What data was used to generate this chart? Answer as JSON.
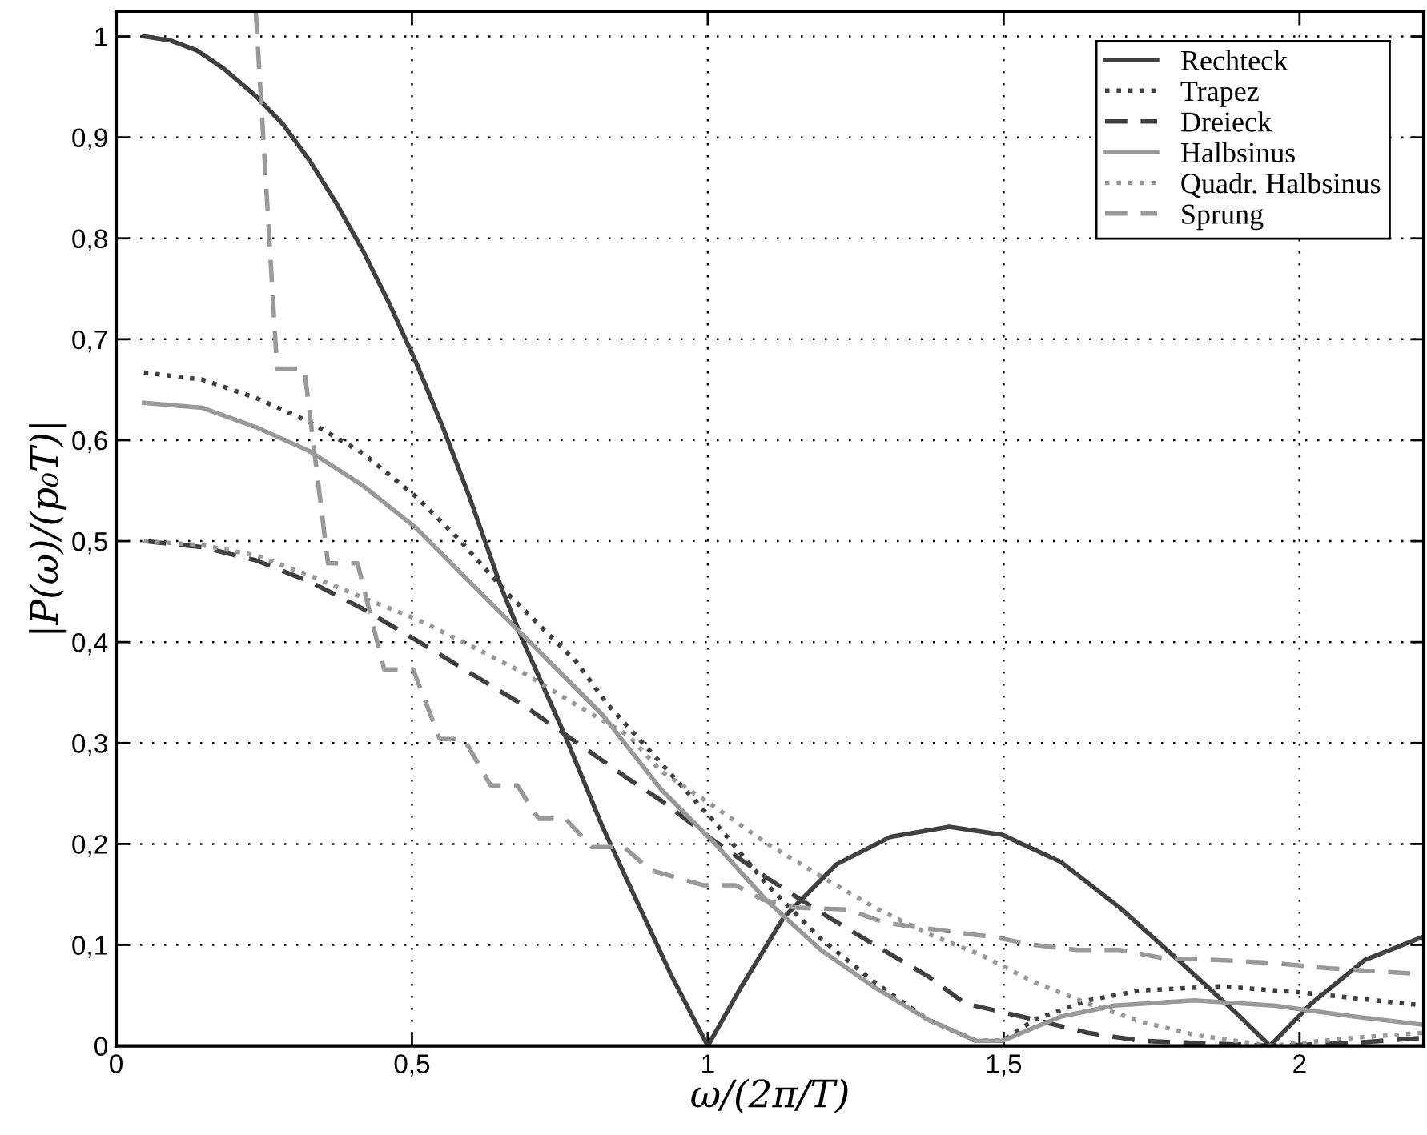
{
  "chart_data": {
    "type": "line",
    "xlabel": "ω/(2π/T)",
    "ylabel": "|P(ω)/(p₀T)|",
    "xlim": [
      0,
      2.21
    ],
    "ylim": [
      0,
      1.025
    ],
    "xticks": [
      0,
      {
        "value": 0.5,
        "label": "0,5"
      },
      1,
      {
        "value": 1.5,
        "label": "1,5"
      },
      2
    ],
    "yticks": [
      0,
      {
        "value": 0.1,
        "label": "0,1"
      },
      {
        "value": 0.2,
        "label": "0,2"
      },
      {
        "value": 0.3,
        "label": "0,3"
      },
      {
        "value": 0.4,
        "label": "0,4"
      },
      {
        "value": 0.5,
        "label": "0,5"
      },
      {
        "value": 0.6,
        "label": "0,6"
      },
      {
        "value": 0.7,
        "label": "0,7"
      },
      {
        "value": 0.8,
        "label": "0,8"
      },
      {
        "value": 0.9,
        "label": "0,9"
      },
      1
    ],
    "grid": true,
    "legend": "top right",
    "marker": "none",
    "series": [
      {
        "name": "Rechteck",
        "color": "#404040",
        "line_style": "solid",
        "x": [
          0.047,
          0.092,
          0.137,
          0.182,
          0.236,
          0.282,
          0.327,
          0.372,
          0.417,
          0.462,
          0.507,
          0.552,
          0.597,
          0.651,
          0.687,
          0.759,
          0.822,
          0.885,
          0.939,
          1.0,
          1.056,
          1.128,
          1.218,
          1.309,
          1.408,
          1.498,
          1.597,
          1.696,
          1.795,
          1.894,
          1.95,
          2.02,
          2.11,
          2.209
        ],
        "values": [
          1.0,
          0.996,
          0.986,
          0.968,
          0.941,
          0.913,
          0.877,
          0.835,
          0.788,
          0.735,
          0.677,
          0.613,
          0.544,
          0.454,
          0.402,
          0.307,
          0.217,
          0.137,
          0.069,
          0.0,
          0.058,
          0.127,
          0.18,
          0.207,
          0.217,
          0.209,
          0.182,
          0.137,
          0.085,
          0.032,
          0.0,
          0.042,
          0.085,
          0.108
        ]
      },
      {
        "name": "Trapez",
        "color": "#404040",
        "line_style": "dotted",
        "x": [
          0.047,
          0.146,
          0.236,
          0.327,
          0.417,
          0.507,
          0.579,
          0.66,
          0.777,
          0.831,
          0.921,
          1.011,
          1.101,
          1.191,
          1.282,
          1.372,
          1.453,
          1.498,
          1.552,
          1.642,
          1.732,
          1.867,
          2.002,
          2.209
        ],
        "values": [
          0.667,
          0.66,
          0.642,
          0.618,
          0.587,
          0.544,
          0.502,
          0.449,
          0.381,
          0.338,
          0.28,
          0.222,
          0.159,
          0.106,
          0.063,
          0.026,
          0.005,
          0.005,
          0.026,
          0.045,
          0.055,
          0.059,
          0.053,
          0.04
        ]
      },
      {
        "name": "Dreieck",
        "color": "#404040",
        "line_style": "dashed",
        "x": [
          0.047,
          0.146,
          0.236,
          0.327,
          0.417,
          0.507,
          0.597,
          0.687,
          0.777,
          0.867,
          0.921,
          1.011,
          1.101,
          1.191,
          1.282,
          1.372,
          1.435,
          1.552,
          1.642,
          1.732,
          1.822,
          1.957,
          2.092,
          2.209
        ],
        "values": [
          0.5,
          0.494,
          0.481,
          0.46,
          0.433,
          0.402,
          0.37,
          0.338,
          0.301,
          0.264,
          0.243,
          0.203,
          0.166,
          0.132,
          0.1,
          0.069,
          0.042,
          0.026,
          0.013,
          0.005,
          0.003,
          0.0,
          0.003,
          0.008
        ]
      },
      {
        "name": "Halbsinus",
        "color": "#999999",
        "line_style": "solid",
        "x": [
          0.047,
          0.146,
          0.236,
          0.327,
          0.417,
          0.507,
          0.597,
          0.696,
          0.822,
          0.921,
          1.011,
          1.101,
          1.191,
          1.282,
          1.372,
          1.453,
          1.498,
          1.597,
          1.687,
          1.822,
          1.957,
          2.092,
          2.209
        ],
        "values": [
          0.637,
          0.632,
          0.613,
          0.589,
          0.555,
          0.513,
          0.46,
          0.402,
          0.328,
          0.254,
          0.201,
          0.143,
          0.095,
          0.058,
          0.026,
          0.005,
          0.005,
          0.029,
          0.04,
          0.045,
          0.04,
          0.029,
          0.021
        ]
      },
      {
        "name": "Quadr. Halbsinus",
        "color": "#999999",
        "line_style": "dotted",
        "x": [
          0.047,
          0.146,
          0.236,
          0.327,
          0.417,
          0.507,
          0.597,
          0.687,
          0.777,
          0.867,
          0.921,
          1.011,
          1.101,
          1.191,
          1.282,
          1.372,
          1.462,
          1.552,
          1.642,
          1.732,
          1.822,
          1.95,
          2.092,
          2.209
        ],
        "values": [
          0.5,
          0.496,
          0.486,
          0.466,
          0.444,
          0.423,
          0.397,
          0.37,
          0.338,
          0.307,
          0.272,
          0.237,
          0.2,
          0.168,
          0.137,
          0.111,
          0.09,
          0.063,
          0.042,
          0.024,
          0.011,
          0.0,
          0.008,
          0.013
        ]
      },
      {
        "name": "Sprung",
        "color": "#999999",
        "line_style": "dashed",
        "x": [
          0.236,
          0.272,
          0.318,
          0.358,
          0.408,
          0.453,
          0.502,
          0.547,
          0.588,
          0.633,
          0.678,
          0.714,
          0.759,
          0.804,
          0.858,
          0.903,
          0.993,
          1.047,
          1.092,
          1.146,
          1.236,
          1.299,
          1.372,
          1.48,
          1.552,
          1.624,
          1.696,
          1.768,
          1.867,
          1.957,
          2.047,
          2.209
        ],
        "values": [
          1.025,
          0.671,
          0.671,
          0.478,
          0.478,
          0.373,
          0.373,
          0.304,
          0.304,
          0.258,
          0.258,
          0.225,
          0.225,
          0.197,
          0.197,
          0.174,
          0.159,
          0.159,
          0.145,
          0.137,
          0.135,
          0.122,
          0.116,
          0.108,
          0.1,
          0.095,
          0.095,
          0.087,
          0.085,
          0.082,
          0.077,
          0.071
        ]
      }
    ]
  }
}
